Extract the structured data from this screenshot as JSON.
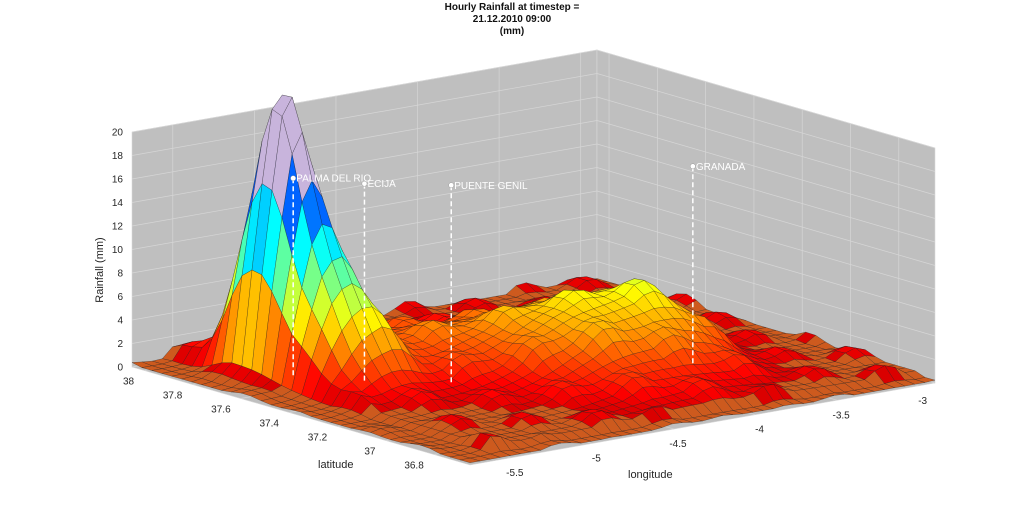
{
  "chart_data": {
    "type": "surface",
    "title_lines": [
      "Hourly Rainfall at timestep =",
      "21.12.2010 09:00",
      "(mm)"
    ],
    "xlabel": "longitude",
    "ylabel": "latitude",
    "zlabel": "Rainfall (mm)",
    "xlim": [
      -5.75,
      -2.9
    ],
    "ylim": [
      36.65,
      38.05
    ],
    "zlim": [
      0,
      20
    ],
    "x_ticks": [
      -5.5,
      -5,
      -4.5,
      -4,
      -3.5,
      -3
    ],
    "x_tick_labels": [
      "-5.5",
      "-5",
      "-4.5",
      "-4",
      "-3.5",
      "-3"
    ],
    "y_ticks": [
      36.8,
      37,
      37.2,
      37.4,
      37.6,
      37.8,
      38
    ],
    "y_tick_labels": [
      "36.8",
      "37",
      "37.2",
      "37.4",
      "37.6",
      "37.8",
      "38"
    ],
    "z_ticks": [
      0,
      2,
      4,
      6,
      8,
      10,
      12,
      14,
      16,
      18,
      20
    ],
    "z_tick_labels": [
      "0",
      "2",
      "4",
      "6",
      "8",
      "10",
      "12",
      "14",
      "16",
      "18",
      "20"
    ],
    "grid": true,
    "colormap": "jet",
    "background_color": "#bfbfbf",
    "surface_features": [
      {
        "lon": -5.35,
        "lat": 37.72,
        "peak_mm": 19.5,
        "spread": 0.16
      },
      {
        "lon": -5.25,
        "lat": 37.55,
        "peak_mm": 9.0,
        "spread": 0.22
      },
      {
        "lon": -4.2,
        "lat": 37.3,
        "peak_mm": 5.0,
        "spread": 0.4
      },
      {
        "lon": -3.75,
        "lat": 37.25,
        "peak_mm": 4.5,
        "spread": 0.28
      },
      {
        "lon": -4.75,
        "lat": 37.55,
        "peak_mm": 2.5,
        "spread": 0.35
      }
    ],
    "stations": [
      {
        "name": "PALMA DEL RIO",
        "lon": -5.28,
        "lat": 37.7,
        "z": 17
      },
      {
        "name": "ECIJA",
        "lon": -5.08,
        "lat": 37.54,
        "z": 17
      },
      {
        "name": "PUENTE GENIL",
        "lon": -4.77,
        "lat": 37.39,
        "z": 17
      },
      {
        "name": "GRANADA",
        "lon": -3.6,
        "lat": 37.18,
        "z": 17
      }
    ]
  }
}
